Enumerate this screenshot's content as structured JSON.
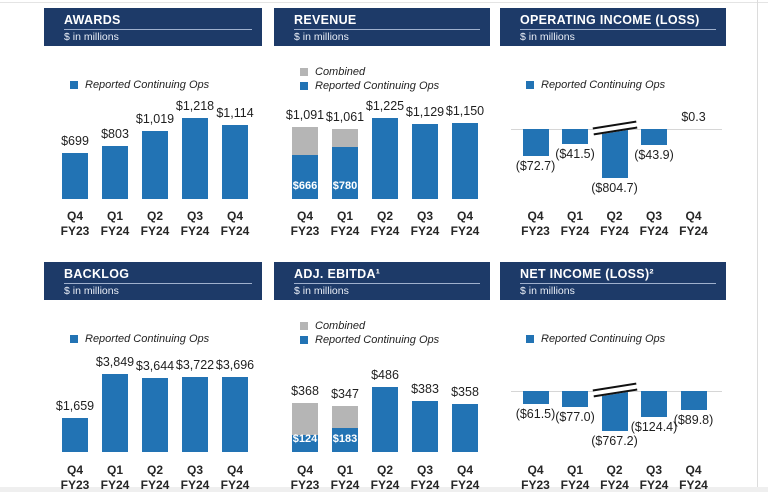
{
  "colors": {
    "header_navy": "#1d3a68",
    "bar_blue": "#2273b4",
    "combined_gray": "#b5b5b5",
    "text_dark": "#1f1f1f",
    "axis_line": "#d6d6d6",
    "header_underline": "#9fb0cd",
    "break_mark": "#111111",
    "page_bg": "#ffffff"
  },
  "chart_data": [
    {
      "type": "bar",
      "title": "AWARDS",
      "subtitle": "$ in millions",
      "legend": [
        {
          "label": "Reported Continuing Ops",
          "color_key": "bar_blue"
        }
      ],
      "categories": [
        {
          "q": "Q4",
          "fy": "FY23"
        },
        {
          "q": "Q1",
          "fy": "FY24"
        },
        {
          "q": "Q2",
          "fy": "FY24"
        },
        {
          "q": "Q3",
          "fy": "FY24"
        },
        {
          "q": "Q4",
          "fy": "FY24"
        }
      ],
      "values": [
        699,
        803,
        1019,
        1218,
        1114
      ],
      "value_labels": [
        "$699",
        "$803",
        "$1,019",
        "$1,218",
        "$1,114"
      ],
      "ylim": [
        0,
        1300
      ],
      "grid": false,
      "legend_position": "top-left"
    },
    {
      "type": "bar",
      "subtype": "stacked",
      "title": "REVENUE",
      "subtitle": "$ in millions",
      "legend": [
        {
          "label": "Combined",
          "color_key": "combined_gray"
        },
        {
          "label": "Reported Continuing Ops",
          "color_key": "bar_blue"
        }
      ],
      "categories": [
        {
          "q": "Q4",
          "fy": "FY23"
        },
        {
          "q": "Q1",
          "fy": "FY24"
        },
        {
          "q": "Q2",
          "fy": "FY24"
        },
        {
          "q": "Q3",
          "fy": "FY24"
        },
        {
          "q": "Q4",
          "fy": "FY24"
        }
      ],
      "series": [
        {
          "name": "Combined (total)",
          "values": [
            1091,
            1061,
            1225,
            1129,
            1150
          ]
        },
        {
          "name": "Reported Continuing Ops",
          "values": [
            666,
            780,
            1225,
            1129,
            1150
          ]
        }
      ],
      "total_labels": [
        "$1,091",
        "$1,061",
        "$1,225",
        "$1,129",
        "$1,150"
      ],
      "inner_labels": [
        "$666",
        "$780",
        "",
        "",
        ""
      ],
      "ylim": [
        0,
        1300
      ],
      "grid": false,
      "legend_position": "top-left"
    },
    {
      "type": "bar",
      "subtype": "negative",
      "title": "OPERATING INCOME (LOSS)",
      "subtitle": "$ in millions",
      "legend": [
        {
          "label": "Reported Continuing Ops",
          "color_key": "bar_blue"
        }
      ],
      "categories": [
        {
          "q": "Q4",
          "fy": "FY23"
        },
        {
          "q": "Q1",
          "fy": "FY24"
        },
        {
          "q": "Q2",
          "fy": "FY24"
        },
        {
          "q": "Q3",
          "fy": "FY24"
        },
        {
          "q": "Q4",
          "fy": "FY24"
        }
      ],
      "values": [
        -72.7,
        -41.5,
        -804.7,
        -43.9,
        0.3
      ],
      "value_labels": [
        "($72.7)",
        "($41.5)",
        "($804.7)",
        "($43.9)",
        "$0.3"
      ],
      "truncated": [
        false,
        false,
        true,
        false,
        false
      ],
      "axis_break": true,
      "ylim": [
        -850,
        50
      ],
      "grid": false,
      "legend_position": "top-left"
    },
    {
      "type": "bar",
      "title": "BACKLOG",
      "subtitle": "$ in millions",
      "legend": [
        {
          "label": "Reported Continuing Ops",
          "color_key": "bar_blue"
        }
      ],
      "categories": [
        {
          "q": "Q4",
          "fy": "FY23"
        },
        {
          "q": "Q1",
          "fy": "FY24"
        },
        {
          "q": "Q2",
          "fy": "FY24"
        },
        {
          "q": "Q3",
          "fy": "FY24"
        },
        {
          "q": "Q4",
          "fy": "FY24"
        }
      ],
      "values": [
        1659,
        3849,
        3644,
        3722,
        3696
      ],
      "value_labels": [
        "$1,659",
        "$3,849",
        "$3,644",
        "$3,722",
        "$3,696"
      ],
      "ylim": [
        0,
        4200
      ],
      "grid": false,
      "legend_position": "top-left"
    },
    {
      "type": "bar",
      "subtype": "stacked",
      "title": "ADJ. EBITDA¹",
      "subtitle": "$ in millions",
      "legend": [
        {
          "label": "Combined",
          "color_key": "combined_gray"
        },
        {
          "label": "Reported Continuing Ops",
          "color_key": "bar_blue"
        }
      ],
      "categories": [
        {
          "q": "Q4",
          "fy": "FY23"
        },
        {
          "q": "Q1",
          "fy": "FY24"
        },
        {
          "q": "Q2",
          "fy": "FY24"
        },
        {
          "q": "Q3",
          "fy": "FY24"
        },
        {
          "q": "Q4",
          "fy": "FY24"
        }
      ],
      "series": [
        {
          "name": "Combined (total)",
          "values": [
            368,
            347,
            486,
            383,
            358
          ]
        },
        {
          "name": "Reported Continuing Ops",
          "values": [
            124,
            183,
            486,
            383,
            358
          ]
        }
      ],
      "total_labels": [
        "$368",
        "$347",
        "$486",
        "$383",
        "$358"
      ],
      "inner_labels": [
        "$124",
        "$183",
        "",
        "",
        ""
      ],
      "ylim": [
        0,
        550
      ],
      "grid": false,
      "legend_position": "top-left"
    },
    {
      "type": "bar",
      "subtype": "negative",
      "title": "NET INCOME (LOSS)²",
      "subtitle": "$ in millions",
      "legend": [
        {
          "label": "Reported Continuing Ops",
          "color_key": "bar_blue"
        }
      ],
      "categories": [
        {
          "q": "Q4",
          "fy": "FY23"
        },
        {
          "q": "Q1",
          "fy": "FY24"
        },
        {
          "q": "Q2",
          "fy": "FY24"
        },
        {
          "q": "Q3",
          "fy": "FY24"
        },
        {
          "q": "Q4",
          "fy": "FY24"
        }
      ],
      "values": [
        -61.5,
        -77.0,
        -767.2,
        -124.4,
        -89.8
      ],
      "value_labels": [
        "($61.5)",
        "($77.0)",
        "($767.2)",
        "($124.4)",
        "($89.8)"
      ],
      "truncated": [
        false,
        false,
        true,
        false,
        false
      ],
      "axis_break": true,
      "ylim": [
        -800,
        0
      ],
      "grid": false,
      "legend_position": "top-left"
    }
  ]
}
